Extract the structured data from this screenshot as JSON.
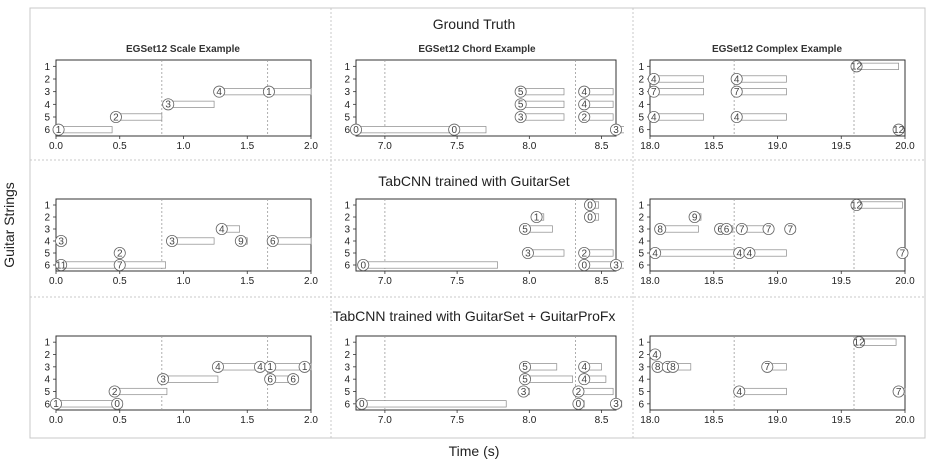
{
  "figure": {
    "xlabel": "Time (s)",
    "ylabel": "Guitar Strings",
    "rows": [
      "Ground Truth",
      "TabCNN trained with GuitarSet",
      "TabCNN trained with GuitarSet + GuitarProFx"
    ],
    "columns": [
      "EGSet12 Scale Example",
      "EGSet12 Chord Example",
      "EGSet12 Complex Example"
    ]
  },
  "chart_data": [
    {
      "type": "scatter",
      "row": 0,
      "col": 0,
      "xlim": [
        0,
        2.0
      ],
      "xticks": [
        0,
        0.5,
        1.0,
        1.5,
        2.0
      ],
      "xtick_labels": [
        "0.0",
        "0.5",
        "1.0",
        "1.5",
        "2.0"
      ],
      "vlines": [
        0.83,
        1.66
      ],
      "string_labels": [
        "1",
        "2",
        "3",
        "4",
        "5",
        "6"
      ],
      "notes": [
        {
          "string": 6,
          "fret": "1",
          "start": 0.02,
          "end": 0.44
        },
        {
          "string": 5,
          "fret": "2",
          "start": 0.47,
          "end": 0.83
        },
        {
          "string": 4,
          "fret": "3",
          "start": 0.88,
          "end": 1.24
        },
        {
          "string": 3,
          "fret": "4",
          "start": 1.28,
          "end": 1.64
        },
        {
          "string": 3,
          "fret": "1",
          "start": 1.67,
          "end": 2.0
        }
      ]
    },
    {
      "type": "scatter",
      "row": 0,
      "col": 1,
      "xlim": [
        6.8,
        8.6
      ],
      "xticks": [
        7.0,
        7.5,
        8.0,
        8.5
      ],
      "xtick_labels": [
        "7.0",
        "7.5",
        "8.0",
        "8.5"
      ],
      "vlines": [
        7.0,
        8.32
      ],
      "string_labels": [
        "1",
        "2",
        "3",
        "4",
        "5",
        "6"
      ],
      "notes": [
        {
          "string": 6,
          "fret": "0",
          "start": 6.8,
          "end": 7.48
        },
        {
          "string": 6,
          "fret": "0",
          "start": 7.48,
          "end": 7.7
        },
        {
          "string": 3,
          "fret": "5",
          "start": 7.94,
          "end": 8.24
        },
        {
          "string": 4,
          "fret": "5",
          "start": 7.94,
          "end": 8.24
        },
        {
          "string": 5,
          "fret": "3",
          "start": 7.94,
          "end": 8.24
        },
        {
          "string": 3,
          "fret": "4",
          "start": 8.38,
          "end": 8.58
        },
        {
          "string": 4,
          "fret": "4",
          "start": 8.38,
          "end": 8.58
        },
        {
          "string": 5,
          "fret": "2",
          "start": 8.38,
          "end": 8.58
        },
        {
          "string": 6,
          "fret": "3",
          "start": 8.6,
          "end": 8.8
        }
      ]
    },
    {
      "type": "scatter",
      "row": 0,
      "col": 2,
      "xlim": [
        18.0,
        20.0
      ],
      "xticks": [
        18.0,
        18.5,
        19.0,
        19.5,
        20.0
      ],
      "xtick_labels": [
        "18.0",
        "18.5",
        "19.0",
        "19.5",
        "20.0"
      ],
      "vlines": [
        18.66,
        19.6
      ],
      "string_labels": [
        "1",
        "2",
        "3",
        "4",
        "5",
        "6"
      ],
      "notes": [
        {
          "string": 1,
          "fret": "12",
          "start": 19.62,
          "end": 19.95
        },
        {
          "string": 2,
          "fret": "4",
          "start": 18.03,
          "end": 18.42
        },
        {
          "string": 2,
          "fret": "4",
          "start": 18.68,
          "end": 19.07
        },
        {
          "string": 3,
          "fret": "7",
          "start": 18.03,
          "end": 18.42
        },
        {
          "string": 3,
          "fret": "7",
          "start": 18.68,
          "end": 19.07
        },
        {
          "string": 5,
          "fret": "4",
          "start": 18.03,
          "end": 18.42
        },
        {
          "string": 5,
          "fret": "4",
          "start": 18.68,
          "end": 19.07
        },
        {
          "string": 6,
          "fret": "12",
          "start": 19.95,
          "end": 19.99
        }
      ]
    },
    {
      "type": "scatter",
      "row": 1,
      "col": 0,
      "xlim": [
        0,
        2.0
      ],
      "xticks": [
        0,
        0.5,
        1.0,
        1.5,
        2.0
      ],
      "xtick_labels": [
        "0.0",
        "0.5",
        "1.0",
        "1.5",
        "2.0"
      ],
      "vlines": [
        0.83,
        1.66
      ],
      "string_labels": [
        "1",
        "2",
        "3",
        "4",
        "5",
        "6"
      ],
      "notes": [
        {
          "string": 3,
          "fret": "4",
          "start": 1.3,
          "end": 1.44
        },
        {
          "string": 4,
          "fret": "3",
          "start": 0.04,
          "end": 0.08
        },
        {
          "string": 4,
          "fret": "3",
          "start": 0.91,
          "end": 1.24
        },
        {
          "string": 4,
          "fret": "9",
          "start": 1.45,
          "end": 1.5
        },
        {
          "string": 4,
          "fret": "6",
          "start": 1.7,
          "end": 2.0
        },
        {
          "string": 5,
          "fret": "2",
          "start": 0.5,
          "end": 0.53
        },
        {
          "string": 6,
          "fret": "11",
          "start": 0.04,
          "end": 0.5
        },
        {
          "string": 6,
          "fret": "7",
          "start": 0.5,
          "end": 0.86
        }
      ]
    },
    {
      "type": "scatter",
      "row": 1,
      "col": 1,
      "xlim": [
        6.8,
        8.6
      ],
      "xticks": [
        7.0,
        7.5,
        8.0,
        8.5
      ],
      "xtick_labels": [
        "7.0",
        "7.5",
        "8.0",
        "8.5"
      ],
      "vlines": [
        7.0,
        8.32
      ],
      "string_labels": [
        "1",
        "2",
        "3",
        "4",
        "5",
        "6"
      ],
      "notes": [
        {
          "string": 1,
          "fret": "0",
          "start": 8.42,
          "end": 8.48
        },
        {
          "string": 2,
          "fret": "1",
          "start": 8.05,
          "end": 8.1
        },
        {
          "string": 2,
          "fret": "0",
          "start": 8.42,
          "end": 8.48
        },
        {
          "string": 3,
          "fret": "5",
          "start": 7.97,
          "end": 8.16
        },
        {
          "string": 5,
          "fret": "3",
          "start": 7.99,
          "end": 8.24
        },
        {
          "string": 5,
          "fret": "2",
          "start": 8.38,
          "end": 8.58
        },
        {
          "string": 6,
          "fret": "0",
          "start": 6.85,
          "end": 7.78
        },
        {
          "string": 6,
          "fret": "0",
          "start": 8.38,
          "end": 8.58
        },
        {
          "string": 6,
          "fret": "3",
          "start": 8.6,
          "end": 8.8
        }
      ]
    },
    {
      "type": "scatter",
      "row": 1,
      "col": 2,
      "xlim": [
        18.0,
        20.0
      ],
      "xticks": [
        18.0,
        18.5,
        19.0,
        19.5,
        20.0
      ],
      "xtick_labels": [
        "18.0",
        "18.5",
        "19.0",
        "19.5",
        "20.0"
      ],
      "vlines": [
        18.66,
        19.6
      ],
      "string_labels": [
        "1",
        "2",
        "3",
        "4",
        "5",
        "6"
      ],
      "notes": [
        {
          "string": 1,
          "fret": "12",
          "start": 19.62,
          "end": 19.98
        },
        {
          "string": 2,
          "fret": "9",
          "start": 18.35,
          "end": 18.4
        },
        {
          "string": 3,
          "fret": "8",
          "start": 18.08,
          "end": 18.38
        },
        {
          "string": 3,
          "fret": "6",
          "start": 18.55,
          "end": 18.6
        },
        {
          "string": 3,
          "fret": "6",
          "start": 18.6,
          "end": 18.65
        },
        {
          "string": 3,
          "fret": "7",
          "start": 18.72,
          "end": 18.92
        },
        {
          "string": 3,
          "fret": "7",
          "start": 18.93,
          "end": 18.96
        },
        {
          "string": 3,
          "fret": "7",
          "start": 19.1,
          "end": 19.14
        },
        {
          "string": 5,
          "fret": "4",
          "start": 18.04,
          "end": 18.7
        },
        {
          "string": 5,
          "fret": "4",
          "start": 18.7,
          "end": 18.78
        },
        {
          "string": 5,
          "fret": "4",
          "start": 18.78,
          "end": 19.07
        },
        {
          "string": 5,
          "fret": "7",
          "start": 19.98,
          "end": 20.02
        }
      ]
    },
    {
      "type": "scatter",
      "row": 2,
      "col": 0,
      "xlim": [
        0,
        2.0
      ],
      "xticks": [
        0,
        0.5,
        1.0,
        1.5,
        2.0
      ],
      "xtick_labels": [
        "0.0",
        "0.5",
        "1.0",
        "1.5",
        "2.0"
      ],
      "vlines": [
        0.83,
        1.66
      ],
      "string_labels": [
        "1",
        "2",
        "3",
        "4",
        "5",
        "6"
      ],
      "notes": [
        {
          "string": 3,
          "fret": "4",
          "start": 1.27,
          "end": 1.57
        },
        {
          "string": 3,
          "fret": "4",
          "start": 1.6,
          "end": 1.64
        },
        {
          "string": 3,
          "fret": "1",
          "start": 1.68,
          "end": 1.94
        },
        {
          "string": 3,
          "fret": "1",
          "start": 1.95,
          "end": 2.0
        },
        {
          "string": 4,
          "fret": "3",
          "start": 0.84,
          "end": 1.27
        },
        {
          "string": 4,
          "fret": "6",
          "start": 1.68,
          "end": 1.82
        },
        {
          "string": 4,
          "fret": "6",
          "start": 1.86,
          "end": 1.9
        },
        {
          "string": 5,
          "fret": "2",
          "start": 0.46,
          "end": 0.87
        },
        {
          "string": 6,
          "fret": "1",
          "start": 0.0,
          "end": 0.48
        },
        {
          "string": 6,
          "fret": "0",
          "start": 0.48,
          "end": 0.52
        }
      ]
    },
    {
      "type": "scatter",
      "row": 2,
      "col": 1,
      "xlim": [
        6.8,
        8.6
      ],
      "xticks": [
        7.0,
        7.5,
        8.0,
        8.5
      ],
      "xtick_labels": [
        "7.0",
        "7.5",
        "8.0",
        "8.5"
      ],
      "vlines": [
        7.0,
        8.32
      ],
      "string_labels": [
        "1",
        "2",
        "3",
        "4",
        "5",
        "6"
      ],
      "notes": [
        {
          "string": 3,
          "fret": "5",
          "start": 7.97,
          "end": 8.19
        },
        {
          "string": 3,
          "fret": "4",
          "start": 8.38,
          "end": 8.5
        },
        {
          "string": 4,
          "fret": "5",
          "start": 7.97,
          "end": 8.3
        },
        {
          "string": 4,
          "fret": "4",
          "start": 8.38,
          "end": 8.53
        },
        {
          "string": 5,
          "fret": "3",
          "start": 7.96,
          "end": 8.0
        },
        {
          "string": 5,
          "fret": "2",
          "start": 8.34,
          "end": 8.58
        },
        {
          "string": 6,
          "fret": "0",
          "start": 6.84,
          "end": 7.84
        },
        {
          "string": 6,
          "fret": "0",
          "start": 8.34,
          "end": 8.38
        },
        {
          "string": 6,
          "fret": "3",
          "start": 8.6,
          "end": 8.64
        }
      ]
    },
    {
      "type": "scatter",
      "row": 2,
      "col": 2,
      "xlim": [
        18.0,
        20.0
      ],
      "xticks": [
        18.0,
        18.5,
        19.0,
        19.5,
        20.0
      ],
      "xtick_labels": [
        "18.0",
        "18.5",
        "19.0",
        "19.5",
        "20.0"
      ],
      "vlines": [
        18.66,
        19.6
      ],
      "string_labels": [
        "1",
        "2",
        "3",
        "4",
        "5",
        "6"
      ],
      "notes": [
        {
          "string": 1,
          "fret": "12",
          "start": 19.64,
          "end": 19.93
        },
        {
          "string": 2,
          "fret": "4",
          "start": 18.04,
          "end": 18.08
        },
        {
          "string": 3,
          "fret": "8",
          "start": 18.06,
          "end": 18.1
        },
        {
          "string": 3,
          "fret": "7",
          "start": 18.14,
          "end": 18.18
        },
        {
          "string": 3,
          "fret": "8",
          "start": 18.18,
          "end": 18.32
        },
        {
          "string": 3,
          "fret": "7",
          "start": 18.92,
          "end": 19.07
        },
        {
          "string": 5,
          "fret": "4",
          "start": 18.7,
          "end": 19.07
        },
        {
          "string": 5,
          "fret": "7",
          "start": 19.95,
          "end": 20.0
        }
      ]
    }
  ]
}
